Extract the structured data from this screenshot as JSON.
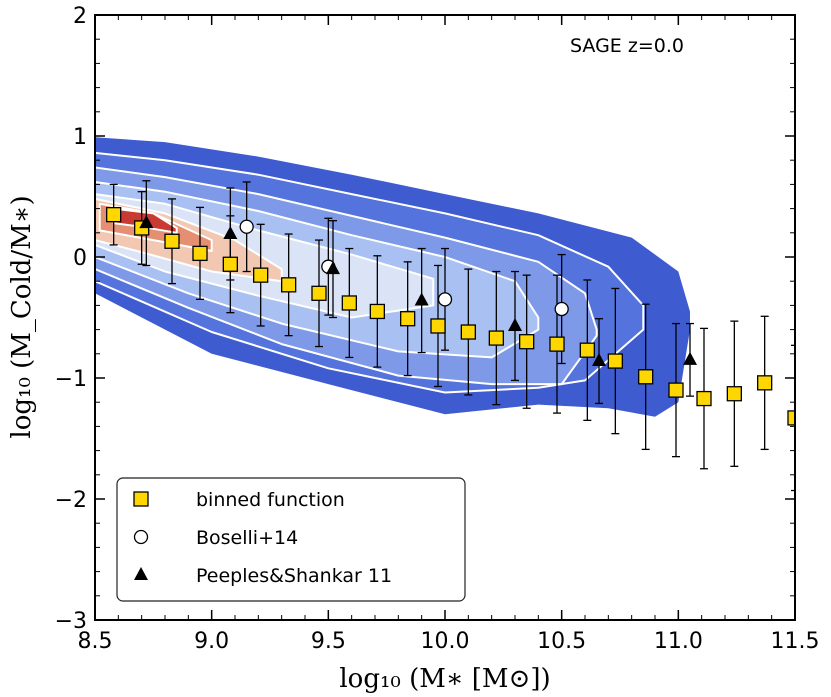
{
  "chart_data": {
    "type": "scatter",
    "title": "",
    "annotation": "SAGE z=0.0",
    "xlabel": "log₁₀ (M∗ [M⊙])",
    "ylabel": "log₁₀ (M_Cold/M∗)",
    "xlim": [
      8.5,
      11.5
    ],
    "ylim": [
      -3,
      2
    ],
    "xticks": [
      8.5,
      9.0,
      9.5,
      10.0,
      10.5,
      11.0,
      11.5
    ],
    "xtick_labels": [
      "8.5",
      "9.0",
      "9.5",
      "10.0",
      "10.5",
      "11.0",
      "11.5"
    ],
    "yticks": [
      -3,
      -2,
      -1,
      0,
      1,
      2
    ],
    "ytick_labels": [
      "−3",
      "−2",
      "−1",
      "0",
      "1",
      "2"
    ],
    "legend_position": "bottom-left",
    "colors": {
      "density_outer": "#3f5bd0",
      "density_mid": "#6f8ee6",
      "density_light": "#b9cdf5",
      "density_pale": "#e6ecf7",
      "density_warm1": "#f2c8b3",
      "density_warm2": "#e58f72",
      "density_warm3": "#c83a32",
      "binned": "#ffd700"
    },
    "density_levels": [
      {
        "color": "#3f5bd0",
        "upper": [
          [
            8.5,
            0.99
          ],
          [
            8.8,
            0.95
          ],
          [
            9.2,
            0.83
          ],
          [
            9.6,
            0.68
          ],
          [
            10.0,
            0.52
          ],
          [
            10.4,
            0.36
          ],
          [
            10.8,
            0.16
          ],
          [
            11.0,
            -0.12
          ],
          [
            11.05,
            -0.45
          ]
        ],
        "lower": [
          [
            11.05,
            -0.6
          ],
          [
            11.0,
            -1.2
          ],
          [
            10.9,
            -1.32
          ],
          [
            10.7,
            -1.25
          ],
          [
            10.4,
            -1.22
          ],
          [
            10.0,
            -1.3
          ],
          [
            9.5,
            -1.05
          ],
          [
            9.0,
            -0.8
          ],
          [
            8.5,
            -0.3
          ]
        ]
      },
      {
        "color": "#5573dc",
        "upper": [
          [
            8.5,
            0.86
          ],
          [
            8.8,
            0.8
          ],
          [
            9.2,
            0.68
          ],
          [
            9.6,
            0.52
          ],
          [
            10.0,
            0.36
          ],
          [
            10.4,
            0.18
          ],
          [
            10.7,
            -0.08
          ],
          [
            10.85,
            -0.4
          ]
        ],
        "lower": [
          [
            10.85,
            -0.6
          ],
          [
            10.6,
            -1.02
          ],
          [
            10.4,
            -1.08
          ],
          [
            10.0,
            -1.12
          ],
          [
            9.5,
            -0.92
          ],
          [
            9.0,
            -0.62
          ],
          [
            8.5,
            -0.2
          ]
        ]
      },
      {
        "color": "#7d99e8",
        "upper": [
          [
            8.5,
            0.74
          ],
          [
            8.8,
            0.66
          ],
          [
            9.2,
            0.52
          ],
          [
            9.6,
            0.34
          ],
          [
            10.0,
            0.16
          ],
          [
            10.4,
            -0.04
          ],
          [
            10.6,
            -0.3
          ],
          [
            10.65,
            -0.6
          ]
        ],
        "lower": [
          [
            10.65,
            -0.65
          ],
          [
            10.5,
            -1.05
          ],
          [
            10.2,
            -1.05
          ],
          [
            9.8,
            -0.98
          ],
          [
            9.3,
            -0.72
          ],
          [
            8.9,
            -0.42
          ],
          [
            8.5,
            -0.1
          ]
        ]
      },
      {
        "color": "#a9c0f2",
        "upper": [
          [
            8.5,
            0.62
          ],
          [
            8.8,
            0.54
          ],
          [
            9.2,
            0.38
          ],
          [
            9.6,
            0.18
          ],
          [
            10.0,
            0.0
          ],
          [
            10.3,
            -0.2
          ],
          [
            10.4,
            -0.5
          ]
        ],
        "lower": [
          [
            10.4,
            -0.6
          ],
          [
            10.2,
            -0.83
          ],
          [
            9.8,
            -0.78
          ],
          [
            9.3,
            -0.55
          ],
          [
            8.9,
            -0.3
          ],
          [
            8.5,
            0.0
          ]
        ]
      },
      {
        "color": "#dbe4f6",
        "upper": [
          [
            8.5,
            0.52
          ],
          [
            8.8,
            0.44
          ],
          [
            9.2,
            0.22
          ],
          [
            9.6,
            0.02
          ],
          [
            9.95,
            -0.18
          ]
        ],
        "lower": [
          [
            9.95,
            -0.4
          ],
          [
            9.6,
            -0.5
          ],
          [
            9.2,
            -0.32
          ],
          [
            8.8,
            -0.12
          ],
          [
            8.5,
            0.1
          ]
        ]
      },
      {
        "color": "#f2c8b3",
        "upper": [
          [
            8.5,
            0.48
          ],
          [
            8.8,
            0.36
          ],
          [
            9.1,
            0.14
          ],
          [
            9.3,
            -0.1
          ]
        ],
        "lower": [
          [
            9.3,
            -0.2
          ],
          [
            9.0,
            -0.12
          ],
          [
            8.7,
            0.04
          ],
          [
            8.5,
            0.14
          ]
        ]
      },
      {
        "color": "#e58f72",
        "upper": [
          [
            8.52,
            0.44
          ],
          [
            8.75,
            0.36
          ],
          [
            9.0,
            0.14
          ]
        ],
        "lower": [
          [
            9.0,
            0.05
          ],
          [
            8.75,
            0.14
          ],
          [
            8.52,
            0.22
          ]
        ]
      },
      {
        "color": "#c83a32",
        "upper": [
          [
            8.58,
            0.4
          ],
          [
            8.75,
            0.36
          ],
          [
            8.85,
            0.24
          ]
        ],
        "lower": [
          [
            8.85,
            0.2
          ],
          [
            8.7,
            0.25
          ],
          [
            8.58,
            0.28
          ]
        ]
      }
    ],
    "series": [
      {
        "name": "binned function",
        "marker": "square",
        "x": [
          8.58,
          8.7,
          8.83,
          8.95,
          9.08,
          9.21,
          9.33,
          9.46,
          9.59,
          9.71,
          9.84,
          9.97,
          10.1,
          10.22,
          10.35,
          10.48,
          10.61,
          10.73,
          10.86,
          10.99,
          11.11,
          11.24,
          11.37,
          11.5
        ],
        "y": [
          0.35,
          0.24,
          0.13,
          0.03,
          -0.06,
          -0.15,
          -0.23,
          -0.3,
          -0.38,
          -0.45,
          -0.51,
          -0.57,
          -0.62,
          -0.67,
          -0.7,
          -0.72,
          -0.77,
          -0.86,
          -0.99,
          -1.1,
          -1.17,
          -1.13,
          -1.04,
          -1.33
        ],
        "yerr": [
          0.25,
          0.3,
          0.35,
          0.38,
          0.4,
          0.42,
          0.42,
          0.44,
          0.45,
          0.46,
          0.47,
          0.5,
          0.52,
          0.55,
          0.55,
          0.57,
          0.58,
          0.6,
          0.6,
          0.55,
          0.58,
          0.6,
          0.55,
          0.6
        ]
      },
      {
        "name": "Boselli+14",
        "marker": "open-circle",
        "x": [
          9.15,
          9.5,
          10.0,
          10.5
        ],
        "y": [
          0.25,
          -0.08,
          -0.35,
          -0.43
        ],
        "yerr": [
          0.37,
          0.4,
          0.42,
          0.45
        ]
      },
      {
        "name": "Peeples&Shankar 11",
        "marker": "triangle",
        "x": [
          8.72,
          9.08,
          9.52,
          9.9,
          10.3,
          10.66,
          11.05
        ],
        "y": [
          0.28,
          0.19,
          -0.1,
          -0.36,
          -0.57,
          -0.86,
          -0.85
        ],
        "yerr": [
          0.35,
          0.38,
          0.4,
          0.43,
          0.45,
          0.35,
          0.3
        ]
      }
    ],
    "legend": [
      {
        "label": "binned function",
        "marker": "square"
      },
      {
        "label": "Boselli+14",
        "marker": "open-circle"
      },
      {
        "label": "Peeples&Shankar 11",
        "marker": "triangle"
      }
    ]
  }
}
